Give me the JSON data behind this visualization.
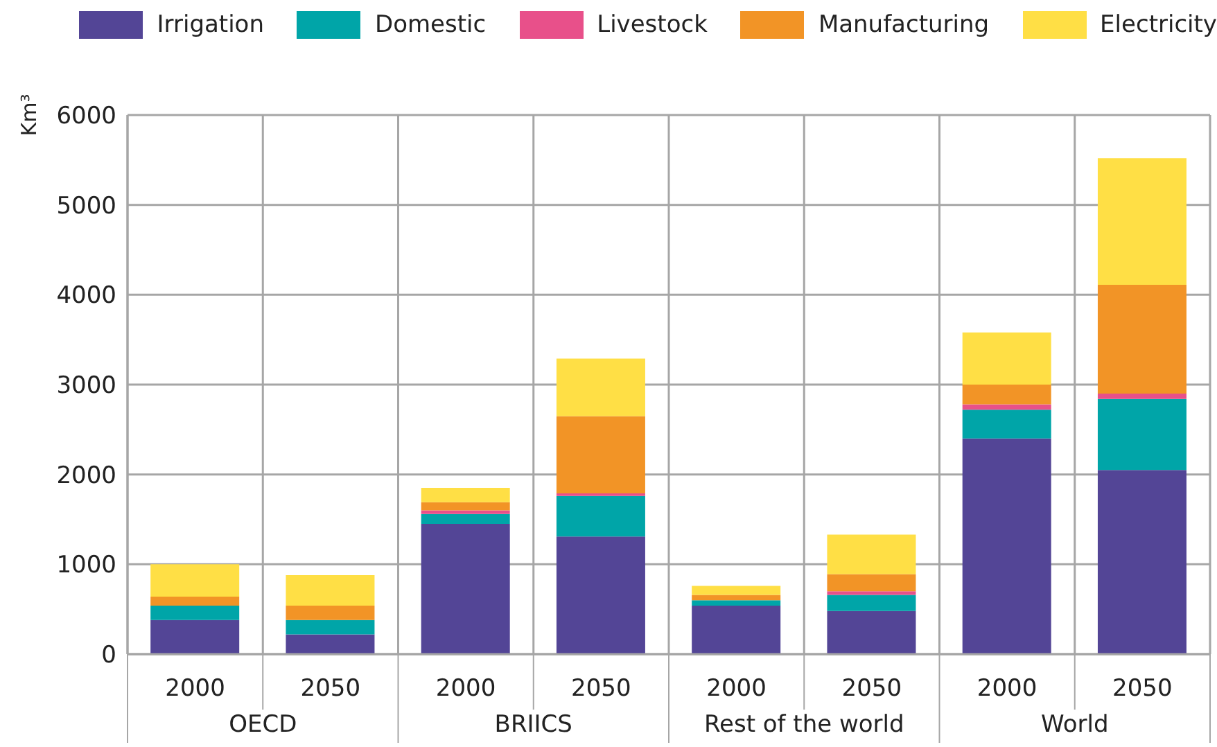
{
  "chart_data": {
    "type": "bar",
    "stacked": true,
    "ylabel": "Km³",
    "categories": [
      "2000",
      "2050",
      "2000",
      "2050",
      "2000",
      "2050",
      "2000",
      "2050"
    ],
    "annotations": [
      "OECD",
      "BRIICS",
      "Rest of the world",
      "World"
    ],
    "series": [
      {
        "name": "Irrigation",
        "color": "#534596",
        "values": [
          380,
          220,
          1450,
          1310,
          540,
          480,
          2400,
          2050
        ]
      },
      {
        "name": "Domestic",
        "color": "#00a5a8",
        "values": [
          160,
          160,
          110,
          450,
          60,
          180,
          320,
          790
        ]
      },
      {
        "name": "Livestock",
        "color": "#e8508a",
        "values": [
          0,
          0,
          40,
          30,
          0,
          40,
          60,
          60
        ]
      },
      {
        "name": "Manufacturing",
        "color": "#f29426",
        "values": [
          100,
          160,
          90,
          860,
          60,
          190,
          220,
          1210
        ]
      },
      {
        "name": "Electricity",
        "color": "#ffdf45",
        "values": [
          360,
          340,
          160,
          640,
          100,
          440,
          580,
          1410
        ]
      }
    ],
    "ylim": [
      0,
      6000
    ],
    "yticks": [
      0,
      1000,
      2000,
      3000,
      4000,
      5000,
      6000
    ],
    "grid": true,
    "legend": "top"
  }
}
